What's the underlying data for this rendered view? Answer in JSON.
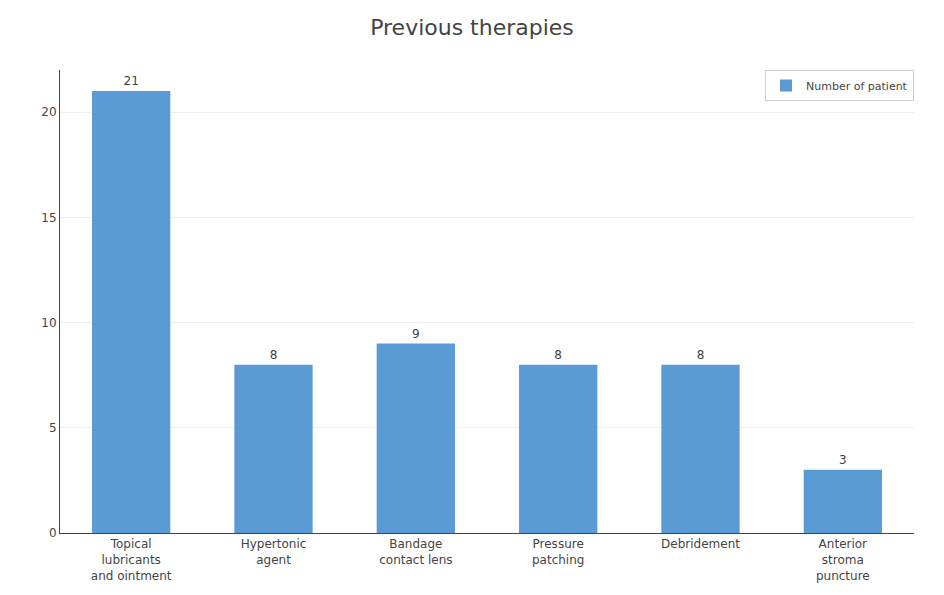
{
  "chart_data": {
    "type": "bar",
    "title": "Previous therapies",
    "categories": [
      "Topical\nlubricants\nand ointment",
      "Hypertonic\nagent",
      "Bandage\ncontact lens",
      "Pressure\npatching",
      "Debridement",
      "Anterior\nstroma\npuncture"
    ],
    "series": [
      {
        "name": "Number of patient",
        "color": "#5B9BD5",
        "values": [
          21,
          8,
          9,
          8,
          8,
          3
        ]
      }
    ],
    "ylim": [
      0,
      22
    ],
    "yticks": [
      0,
      5,
      10,
      15,
      20
    ],
    "grid": true,
    "legend": "upper right",
    "data_labels": true
  }
}
